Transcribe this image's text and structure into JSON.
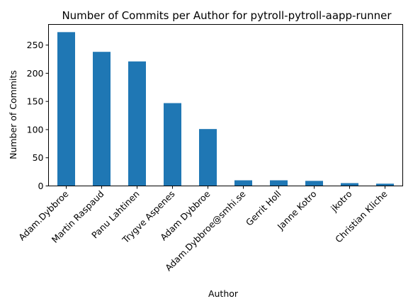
{
  "chart_data": {
    "type": "bar",
    "title": "Number of Commits per Author for pytroll-pytroll-aapp-runner",
    "xlabel": "Author",
    "ylabel": "Number of Commits",
    "categories": [
      "Adam.Dybbroe",
      "Martin Raspaud",
      "Panu Lahtinen",
      "Trygve Aspenes",
      "Adam Dybbroe",
      "Adam.Dybbroe@smhi.se",
      "Gerrit Holl",
      "Janne Kotro",
      "jkotro",
      "Christian Kliche"
    ],
    "values": [
      273,
      238,
      221,
      147,
      101,
      10,
      10,
      9,
      5,
      4
    ],
    "ylim": [
      0,
      286.65
    ],
    "yticks": [
      0,
      50,
      100,
      150,
      200,
      250
    ],
    "bar_color": "#1f77b4",
    "grid": false,
    "legend": "none"
  }
}
